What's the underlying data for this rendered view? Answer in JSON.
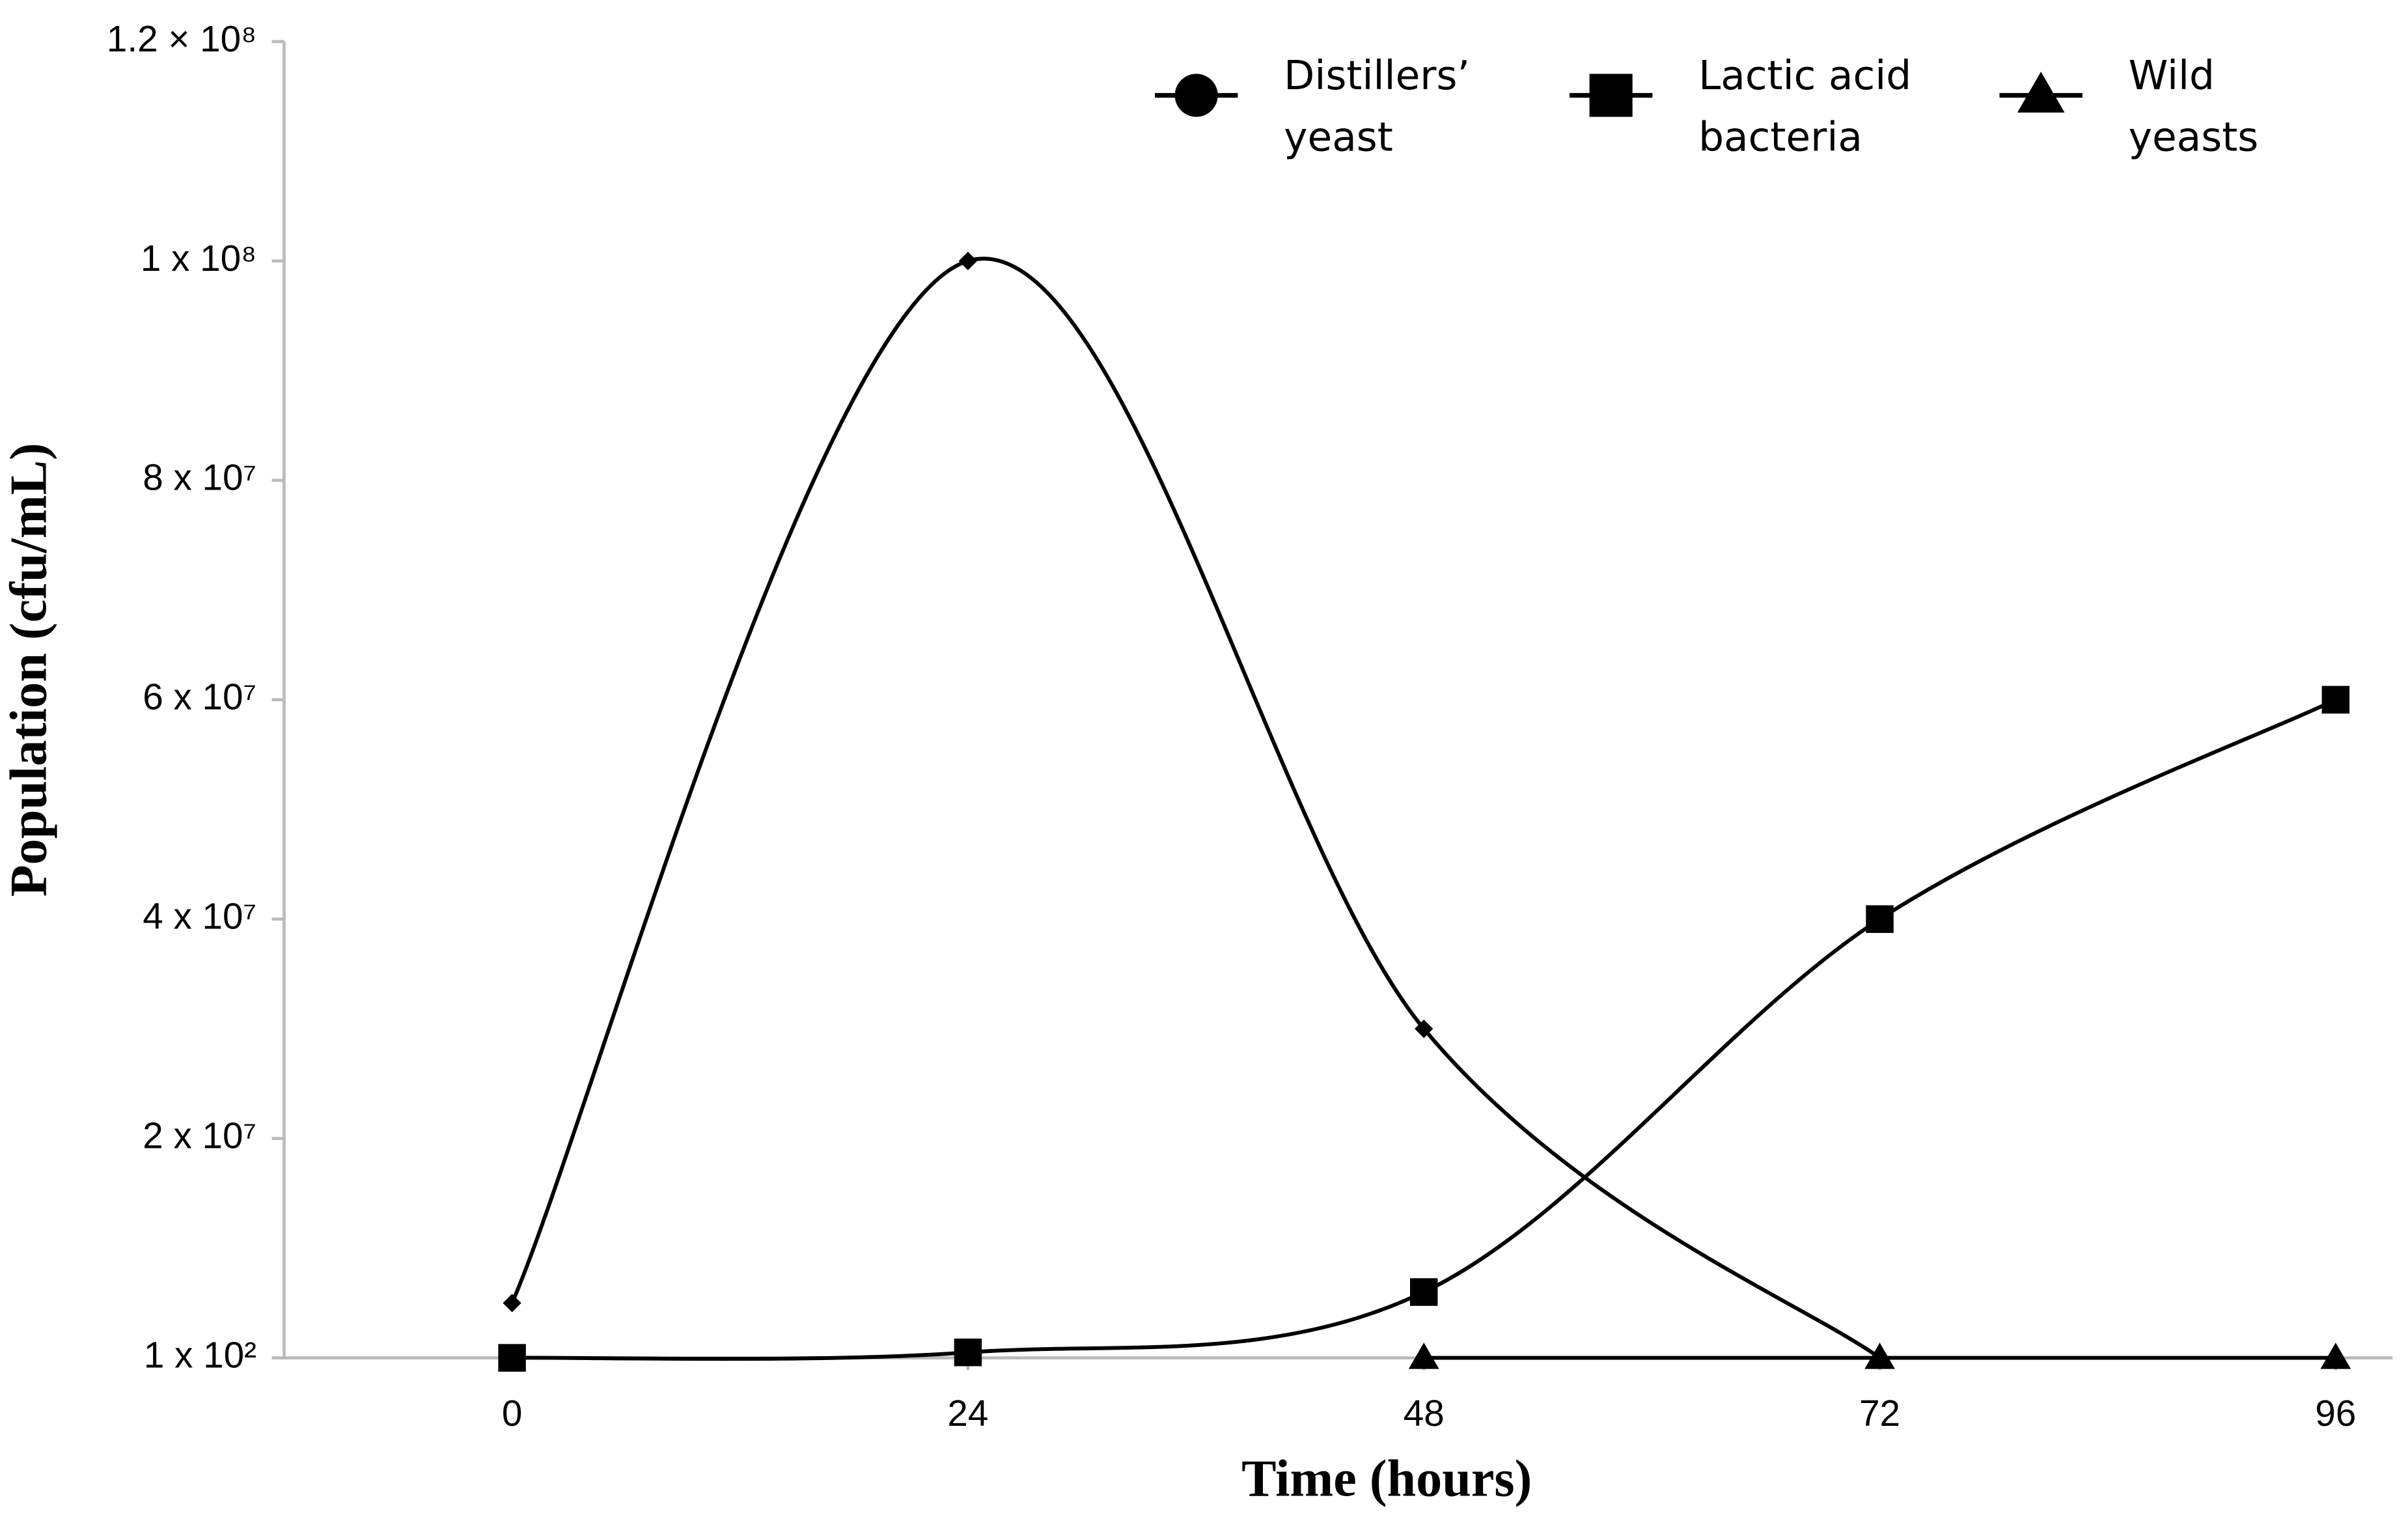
{
  "chart_data": {
    "type": "line",
    "x_label": "Time (hours)",
    "y_label": "Population (cfu/mL)",
    "x": [
      0,
      24,
      48,
      72,
      96
    ],
    "series": [
      {
        "name": "Distillers’ yeast",
        "color": "#000000",
        "marker": "diamond",
        "values": [
          5000000,
          100000000,
          30000000,
          100,
          null
        ]
      },
      {
        "name": "Lactic acid bacteria",
        "color": "#000000",
        "marker": "square",
        "values": [
          100,
          500000,
          6000000,
          40000000,
          60000000
        ]
      },
      {
        "name": "Wild yeasts",
        "color": "#000000",
        "marker": "triangle",
        "values": [
          null,
          null,
          100,
          100,
          100
        ]
      }
    ],
    "xlim": [
      -12,
      99
    ],
    "xticks": [
      0,
      24,
      48,
      72,
      96
    ],
    "ylim": [
      100,
      120000000
    ],
    "yticks": [
      {
        "value": 100,
        "label": "1 x 10²"
      },
      {
        "value": 20000000,
        "label": "2 x 10⁷"
      },
      {
        "value": 40000000,
        "label": "4 x 10⁷"
      },
      {
        "value": 60000000,
        "label": "6 x 10⁷"
      },
      {
        "value": 80000000,
        "label": "8 x 10⁷"
      },
      {
        "value": 100000000,
        "label": "1 x 10⁸"
      },
      {
        "value": 120000000,
        "label": "1.2 × 10⁸"
      }
    ],
    "smooth": true,
    "legend": "top-right"
  }
}
